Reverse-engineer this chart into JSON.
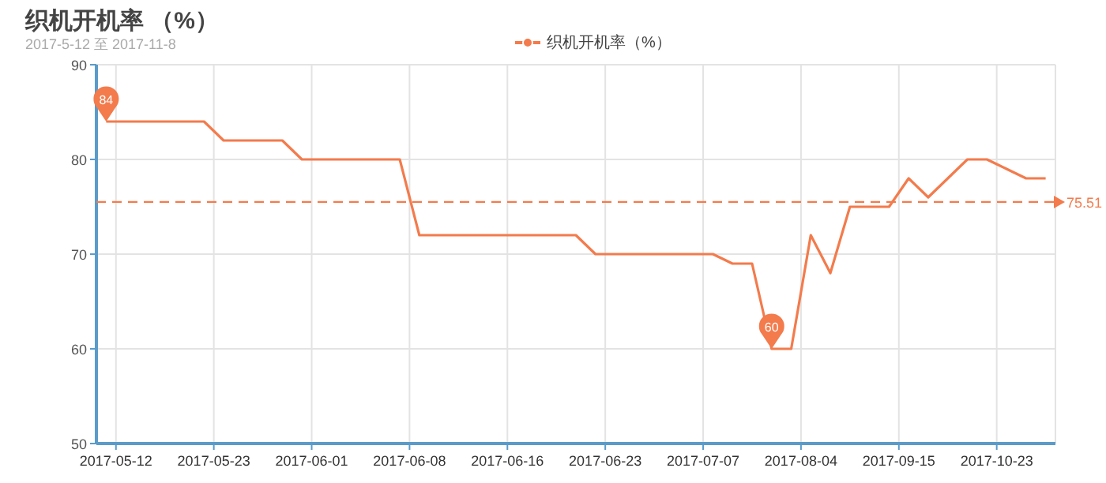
{
  "chart_data": {
    "type": "line",
    "title": "织机开机率 （%）",
    "subtitle": "2017-5-12 至 2017-11-8",
    "categories": [
      null,
      "2017-05-12",
      null,
      null,
      null,
      null,
      null,
      null,
      null,
      null,
      null,
      "2017-05-23",
      null,
      null,
      null,
      null,
      null,
      null,
      null,
      null,
      null,
      "2017-06-01",
      null,
      null,
      null,
      null,
      null,
      null,
      null,
      null,
      null,
      "2017-06-08",
      null,
      null,
      null,
      null,
      null,
      null,
      null,
      null,
      null,
      "2017-06-16",
      null,
      null,
      null,
      null,
      null,
      null,
      null,
      null,
      null,
      "2017-06-23",
      null,
      null,
      null,
      null,
      null,
      null,
      null,
      null,
      null,
      "2017-07-07",
      null,
      null,
      null,
      null,
      null,
      null,
      null,
      null,
      null,
      "2017-08-04",
      null,
      null,
      null,
      null,
      null,
      null,
      null,
      null,
      null,
      "2017-09-15",
      null,
      null,
      null,
      null,
      null,
      null,
      null,
      null,
      null,
      "2017-10-23",
      null,
      null,
      null,
      null,
      null
    ],
    "series": [
      {
        "name": "织机开机率（%）",
        "color": "#f37b4c",
        "values": [
          84,
          84,
          84,
          84,
          84,
          84,
          84,
          84,
          84,
          84,
          84,
          83,
          82,
          82,
          82,
          82,
          82,
          82,
          82,
          81,
          80,
          80,
          80,
          80,
          80,
          80,
          80,
          80,
          80,
          80,
          80,
          76,
          72,
          72,
          72,
          72,
          72,
          72,
          72,
          72,
          72,
          72,
          72,
          72,
          72,
          72,
          72,
          72,
          72,
          71,
          70,
          70,
          70,
          70,
          70,
          70,
          70,
          70,
          70,
          70,
          70,
          70,
          70,
          69.5,
          69,
          69,
          69,
          64.5,
          60,
          60,
          60,
          66,
          72,
          70,
          68,
          71.5,
          75,
          75,
          75,
          75,
          75,
          76.5,
          78,
          77,
          76,
          77,
          78,
          79,
          80,
          80,
          80,
          79.5,
          79,
          78.5,
          78,
          78,
          78
        ]
      }
    ],
    "ylim": [
      50,
      90
    ],
    "yticks": [
      50,
      60,
      70,
      80,
      90
    ],
    "grid": true,
    "legend": "top",
    "ref_lines": [
      {
        "axis": "y",
        "value": 75.51,
        "label": "75.51",
        "color": "#f37b4c",
        "line_style": "dashed"
      }
    ],
    "annotations": [
      {
        "text": "84",
        "y": 84
      },
      {
        "text": "60",
        "y": 60
      }
    ]
  }
}
